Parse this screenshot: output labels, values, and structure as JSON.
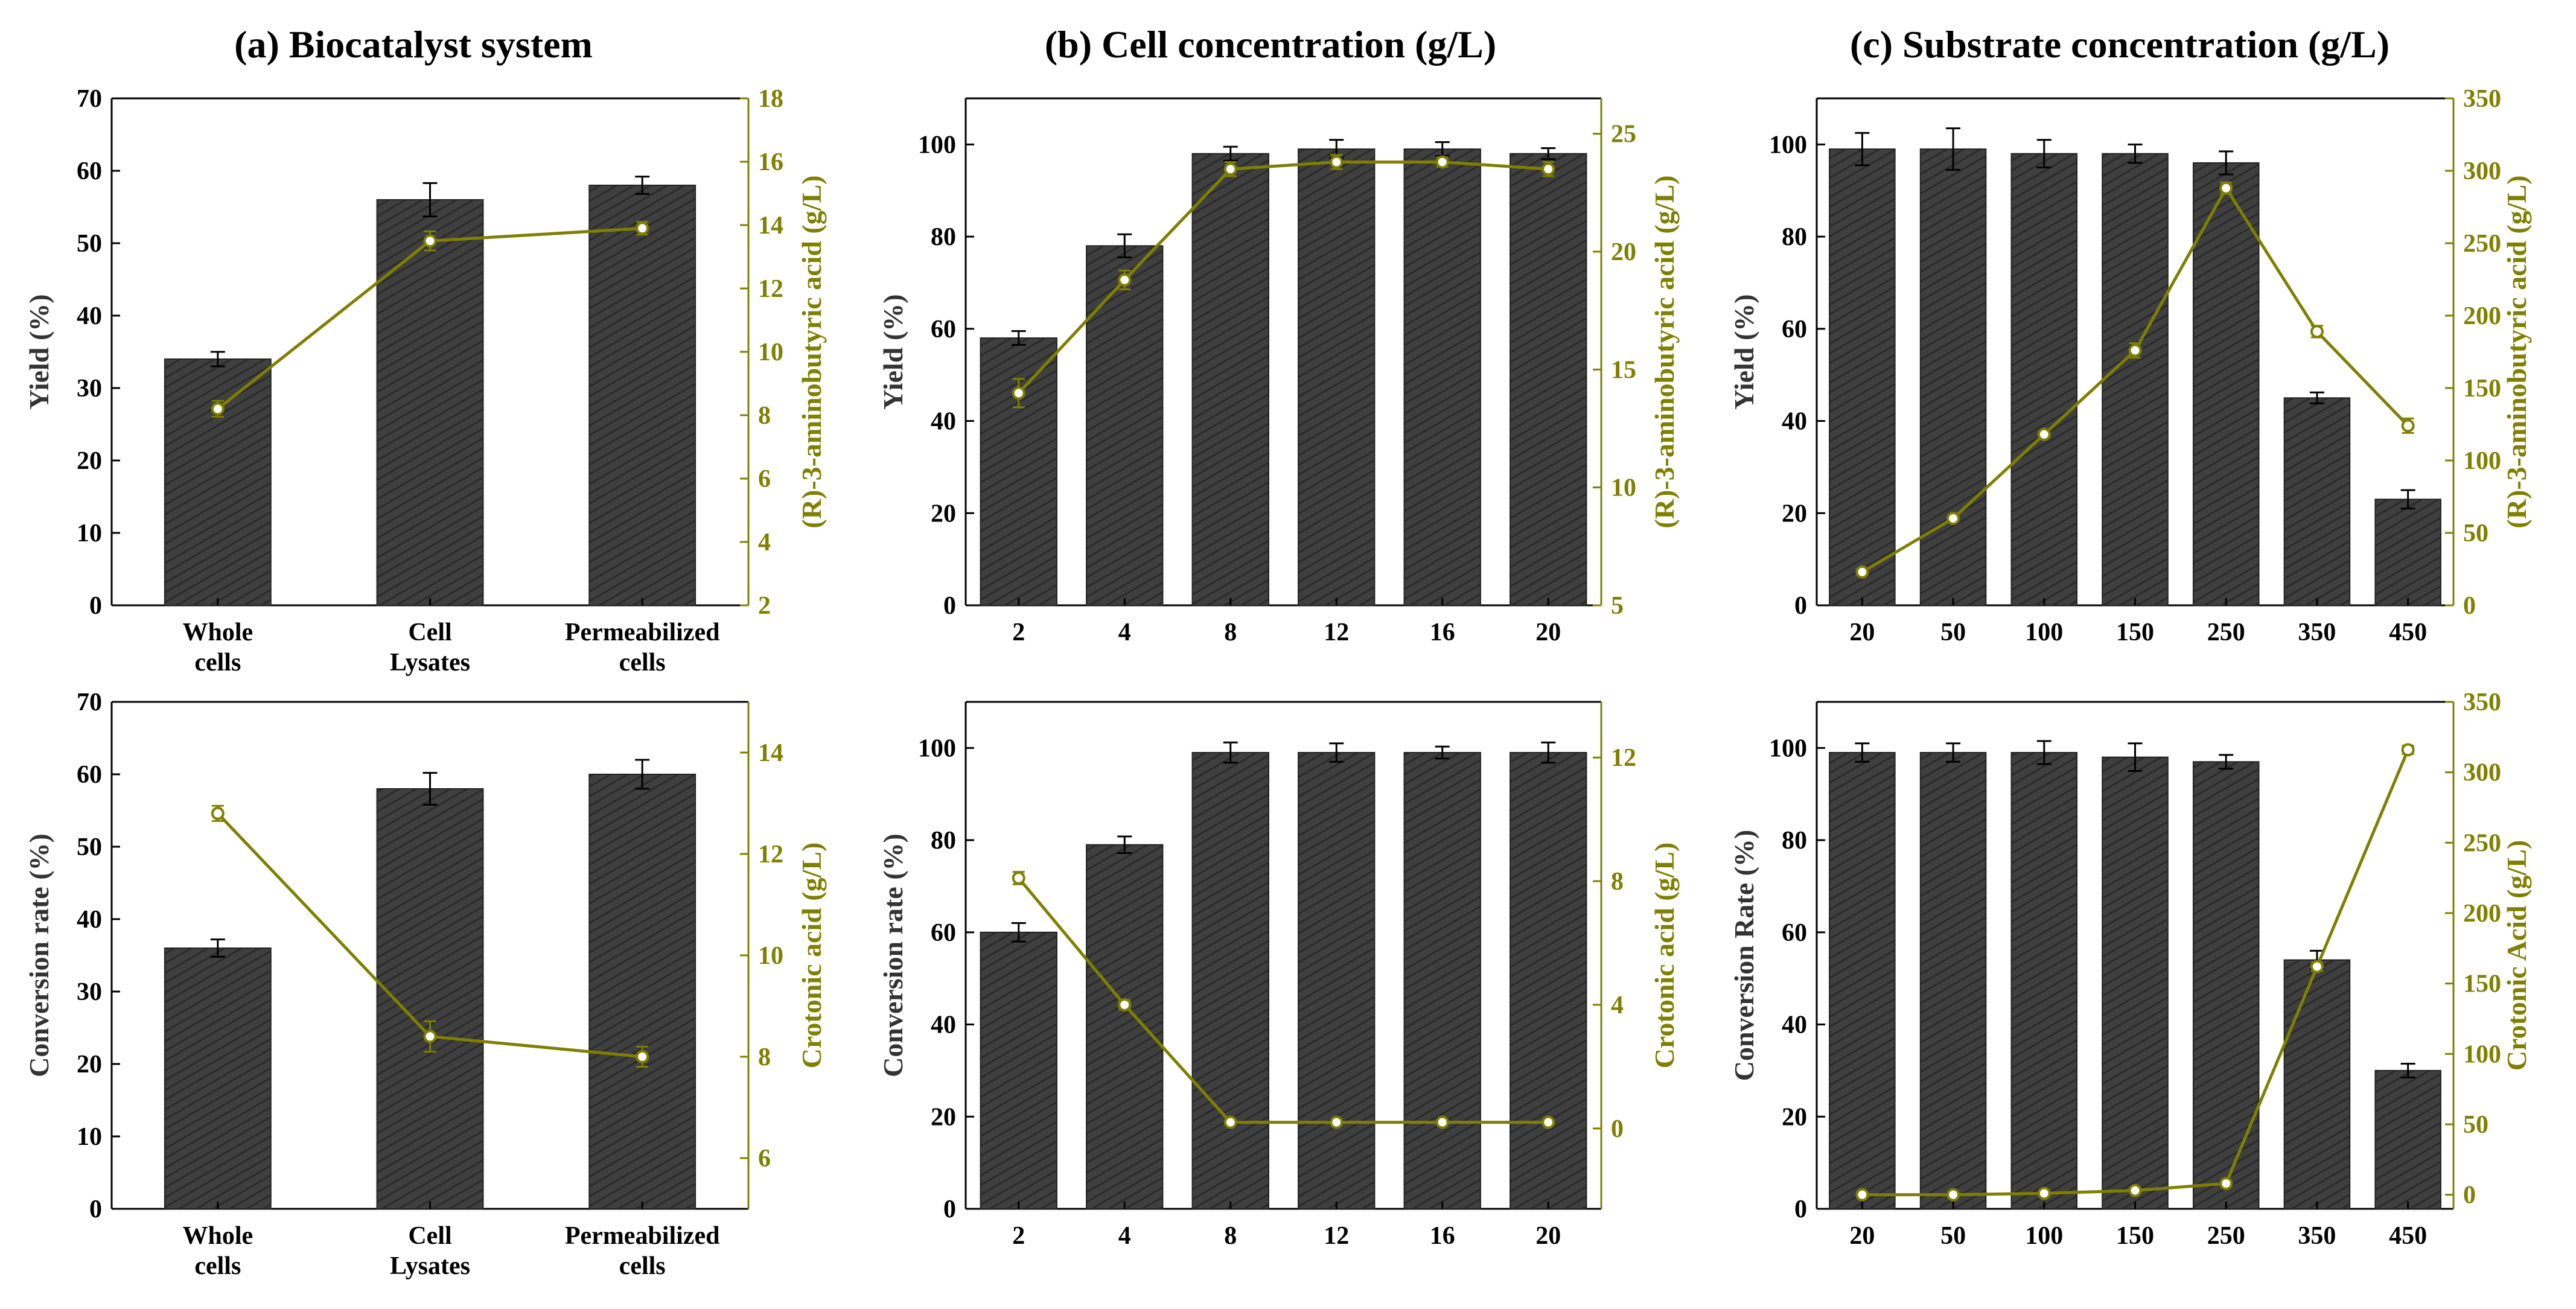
{
  "figure_titles": [
    "(a) Biocatalyst system",
    "(b) Cell concentration (g/L)",
    "(c) Substrate concentration (g/L)"
  ],
  "colors": {
    "bar": "#3f3f3f",
    "line": "#7f7f00",
    "axis": "#000000",
    "right_axis": "#7f7f00"
  },
  "chart_data": [
    {
      "id": "a-top",
      "type": "bar+line",
      "categories": [
        [
          "Whole",
          "cells"
        ],
        [
          "Cell",
          "Lysates"
        ],
        [
          "Permeabilized",
          "cells"
        ]
      ],
      "bars": {
        "values": [
          34,
          56,
          58
        ],
        "errors": [
          1,
          2.3,
          1.2
        ]
      },
      "line": {
        "values": [
          8.2,
          13.5,
          13.9
        ],
        "errors": [
          0.25,
          0.3,
          0.2
        ]
      },
      "ylabel": "Yield (%)",
      "ylim": [
        0,
        70
      ],
      "yticks": [
        0,
        10,
        20,
        30,
        40,
        50,
        60,
        70
      ],
      "y2label": "(R)-3-aminobutyric acid (g/L)",
      "y2lim": [
        2,
        18
      ],
      "y2ticks": [
        2,
        4,
        6,
        8,
        10,
        12,
        14,
        16,
        18
      ]
    },
    {
      "id": "b-top",
      "type": "bar+line",
      "categories": [
        "2",
        "4",
        "8",
        "12",
        "16",
        "20"
      ],
      "bars": {
        "values": [
          58,
          78,
          98,
          99,
          99,
          98
        ],
        "errors": [
          1.5,
          2.5,
          1.5,
          2,
          1.5,
          1.2
        ]
      },
      "line": {
        "values": [
          14,
          18.8,
          23.5,
          23.8,
          23.8,
          23.5
        ],
        "errors": [
          0.6,
          0.4,
          0.3,
          0.3,
          0.2,
          0.3
        ]
      },
      "ylabel": "Yield (%)",
      "ylim": [
        0,
        110
      ],
      "yticks": [
        0,
        20,
        40,
        60,
        80,
        100
      ],
      "y2label": "(R)-3-aminobutyric acid (g/L)",
      "y2lim": [
        5,
        26.5
      ],
      "y2ticks": [
        5,
        10,
        15,
        20,
        25
      ]
    },
    {
      "id": "c-top",
      "type": "bar+line",
      "categories": [
        "20",
        "50",
        "100",
        "150",
        "250",
        "350",
        "450"
      ],
      "bars": {
        "values": [
          99,
          99,
          98,
          98,
          96,
          45,
          23
        ],
        "errors": [
          3.5,
          4.5,
          3,
          2,
          2.5,
          1.2,
          2
        ]
      },
      "line": {
        "values": [
          23,
          60,
          118,
          176,
          288,
          189,
          124
        ],
        "errors": [
          2,
          2,
          2,
          5,
          4,
          4,
          5
        ]
      },
      "ylabel": "Yield (%)",
      "ylim": [
        0,
        110
      ],
      "yticks": [
        0,
        20,
        40,
        60,
        80,
        100
      ],
      "y2label": "(R)-3-aminobutyric acid (g/L)",
      "y2lim": [
        0,
        350
      ],
      "y2ticks": [
        0,
        50,
        100,
        150,
        200,
        250,
        300,
        350
      ]
    },
    {
      "id": "a-bottom",
      "type": "bar+line",
      "categories": [
        [
          "Whole",
          "cells"
        ],
        [
          "Cell",
          "Lysates"
        ],
        [
          "Permeabilized",
          "cells"
        ]
      ],
      "bars": {
        "values": [
          36,
          58,
          60
        ],
        "errors": [
          1.2,
          2.2,
          2
        ]
      },
      "line": {
        "values": [
          12.8,
          8.4,
          8
        ],
        "errors": [
          0.15,
          0.3,
          0.2
        ]
      },
      "ylabel": "Conversion rate (%)",
      "ylim": [
        0,
        70
      ],
      "yticks": [
        0,
        10,
        20,
        30,
        40,
        50,
        60,
        70
      ],
      "y2label": "Crotonic acid (g/L)",
      "y2lim": [
        5,
        15
      ],
      "y2ticks": [
        6,
        8,
        10,
        12,
        14
      ]
    },
    {
      "id": "b-bottom",
      "type": "bar+line",
      "categories": [
        "2",
        "4",
        "8",
        "12",
        "16",
        "20"
      ],
      "bars": {
        "values": [
          60,
          79,
          99,
          99,
          99,
          99
        ],
        "errors": [
          2,
          1.8,
          2.2,
          2,
          1.3,
          2.2
        ]
      },
      "line": {
        "values": [
          8.1,
          4,
          0.2,
          0.2,
          0.2,
          0.2
        ],
        "errors": [
          0.2,
          0.15,
          0.05,
          0.05,
          0.05,
          0.05
        ]
      },
      "ylabel": "Conversion rate (%)",
      "ylim": [
        0,
        110
      ],
      "yticks": [
        0,
        20,
        40,
        60,
        80,
        100
      ],
      "y2label": "Crotonic acid (g/L)",
      "y2lim": [
        -2.6,
        13.8
      ],
      "y2ticks": [
        0,
        4,
        8,
        12
      ]
    },
    {
      "id": "c-bottom",
      "type": "bar+line",
      "categories": [
        "20",
        "50",
        "100",
        "150",
        "250",
        "350",
        "450"
      ],
      "bars": {
        "values": [
          99,
          99,
          99,
          98,
          97,
          54,
          30
        ],
        "errors": [
          2,
          2,
          2.5,
          3,
          1.5,
          2,
          1.5
        ]
      },
      "line": {
        "values": [
          0,
          0,
          1,
          3,
          8,
          162,
          316
        ],
        "errors": [
          1,
          1,
          1,
          1,
          1,
          3,
          3
        ]
      },
      "ylabel": "Conversion Rate (%)",
      "ylim": [
        0,
        110
      ],
      "yticks": [
        0,
        20,
        40,
        60,
        80,
        100
      ],
      "y2label": "Crotonic Acid (g/L)",
      "y2lim": [
        -10,
        350
      ],
      "y2ticks": [
        0,
        50,
        100,
        150,
        200,
        250,
        300,
        350
      ]
    }
  ]
}
